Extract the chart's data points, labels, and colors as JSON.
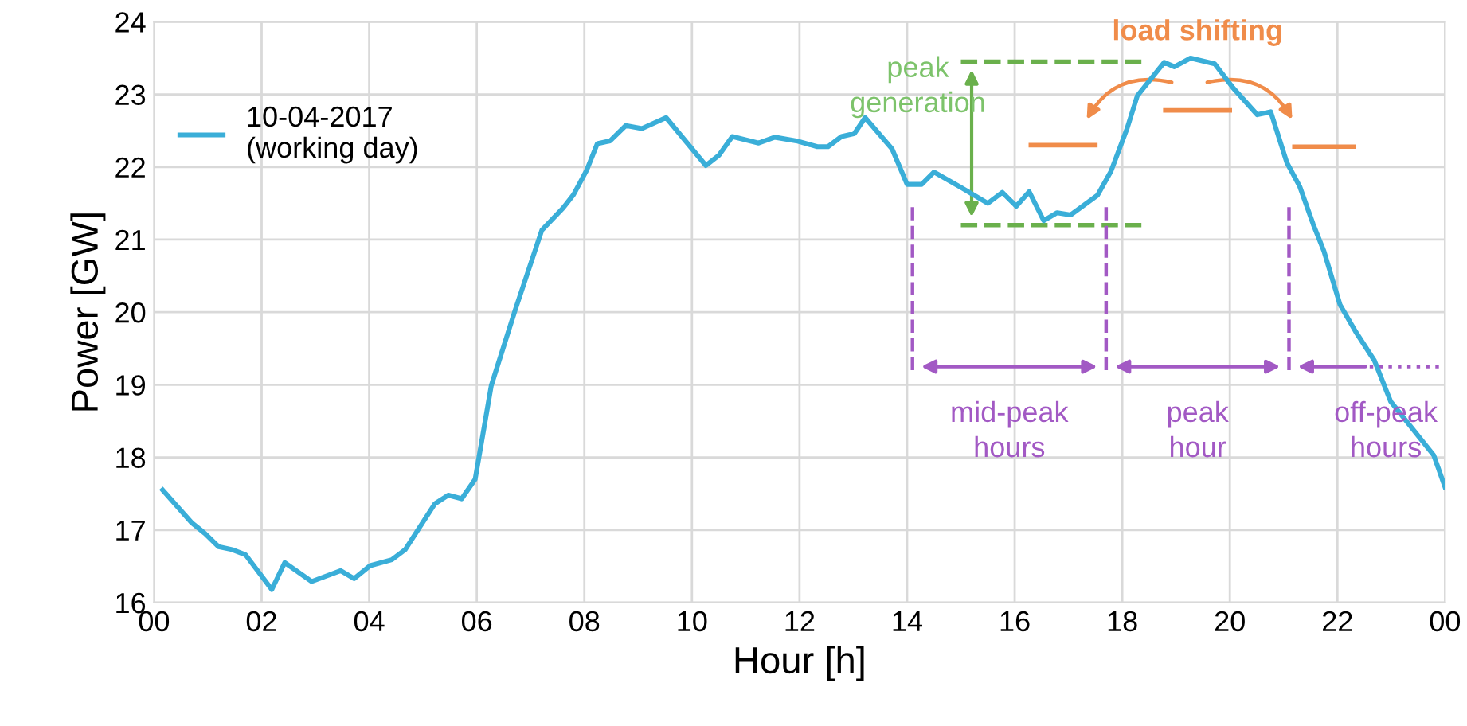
{
  "chart_data": {
    "type": "line",
    "xlabel": "Hour [h]",
    "ylabel": "Power [GW]",
    "xlim": [
      0,
      24
    ],
    "ylim": [
      16,
      24
    ],
    "xticks": [
      {
        "value": 0,
        "label": "00"
      },
      {
        "value": 2,
        "label": "02"
      },
      {
        "value": 4,
        "label": "04"
      },
      {
        "value": 6,
        "label": "06"
      },
      {
        "value": 8,
        "label": "08"
      },
      {
        "value": 10,
        "label": "10"
      },
      {
        "value": 12,
        "label": "12"
      },
      {
        "value": 14,
        "label": "14"
      },
      {
        "value": 16,
        "label": "16"
      },
      {
        "value": 18,
        "label": "18"
      },
      {
        "value": 20,
        "label": "20"
      },
      {
        "value": 22,
        "label": "22"
      },
      {
        "value": 24,
        "label": "00"
      }
    ],
    "yticks": [
      16,
      17,
      18,
      19,
      20,
      21,
      22,
      23,
      24
    ],
    "grid": true,
    "legend": "top left",
    "marker": "none",
    "line_style": "solid",
    "series": [
      {
        "name": "10-04-2017\n(working day)",
        "color": "#3aaed8",
        "x": [
          0.16,
          0.7,
          0.95,
          1.2,
          1.45,
          1.7,
          2.19,
          2.43,
          2.93,
          3.47,
          3.72,
          4.02,
          4.42,
          4.67,
          5.22,
          5.47,
          5.72,
          5.97,
          6.27,
          6.71,
          7.21,
          7.6,
          7.8,
          8.04,
          8.24,
          8.48,
          8.77,
          9.07,
          9.52,
          10.26,
          10.5,
          10.75,
          11.24,
          11.54,
          11.94,
          12.33,
          12.53,
          12.78,
          13.02,
          13.22,
          13.72,
          14.0,
          14.27,
          14.5,
          15.0,
          15.5,
          15.77,
          16.03,
          16.27,
          16.54,
          16.79,
          17.04,
          17.54,
          17.79,
          18.09,
          18.28,
          18.78,
          18.97,
          19.27,
          19.72,
          20.06,
          20.51,
          20.76,
          21.06,
          21.3,
          21.55,
          21.75,
          22.05,
          22.34,
          22.69,
          22.99,
          23.39,
          23.79,
          24.0
        ],
        "values": [
          17.55,
          17.1,
          16.95,
          16.77,
          16.73,
          16.66,
          16.18,
          16.55,
          16.29,
          16.44,
          16.33,
          16.51,
          16.59,
          16.73,
          17.36,
          17.48,
          17.43,
          17.7,
          18.99,
          20.02,
          21.13,
          21.43,
          21.62,
          21.95,
          22.32,
          22.36,
          22.57,
          22.53,
          22.68,
          22.02,
          22.16,
          22.42,
          22.33,
          22.41,
          22.36,
          22.28,
          22.28,
          22.42,
          22.46,
          22.68,
          22.25,
          21.76,
          21.76,
          21.93,
          21.72,
          21.5,
          21.65,
          21.46,
          21.66,
          21.26,
          21.37,
          21.34,
          21.61,
          21.94,
          22.53,
          22.98,
          23.44,
          23.38,
          23.5,
          23.42,
          23.09,
          22.72,
          22.76,
          22.06,
          21.73,
          21.21,
          20.84,
          20.1,
          19.73,
          19.33,
          18.77,
          18.4,
          18.03,
          17.59
        ]
      }
    ],
    "ref_lines": [
      {
        "axis": "y",
        "value": 23.45,
        "color": "#6ab04c",
        "line_style": "dashed"
      },
      {
        "axis": "y",
        "value": 21.2,
        "color": "#6ab04c",
        "line_style": "dashed"
      },
      {
        "axis": "x",
        "value": 14.1,
        "color": "#a259c4",
        "line_style": "dashed"
      },
      {
        "axis": "x",
        "value": 17.7,
        "color": "#a259c4",
        "line_style": "dashed"
      },
      {
        "axis": "x",
        "value": 21.1,
        "color": "#a259c4",
        "line_style": "dashed"
      }
    ],
    "annotations": [
      "peak\ngeneration",
      "load shifting",
      "mid-peak\nhours",
      "peak\nhour",
      "off-peak\nhours"
    ]
  }
}
